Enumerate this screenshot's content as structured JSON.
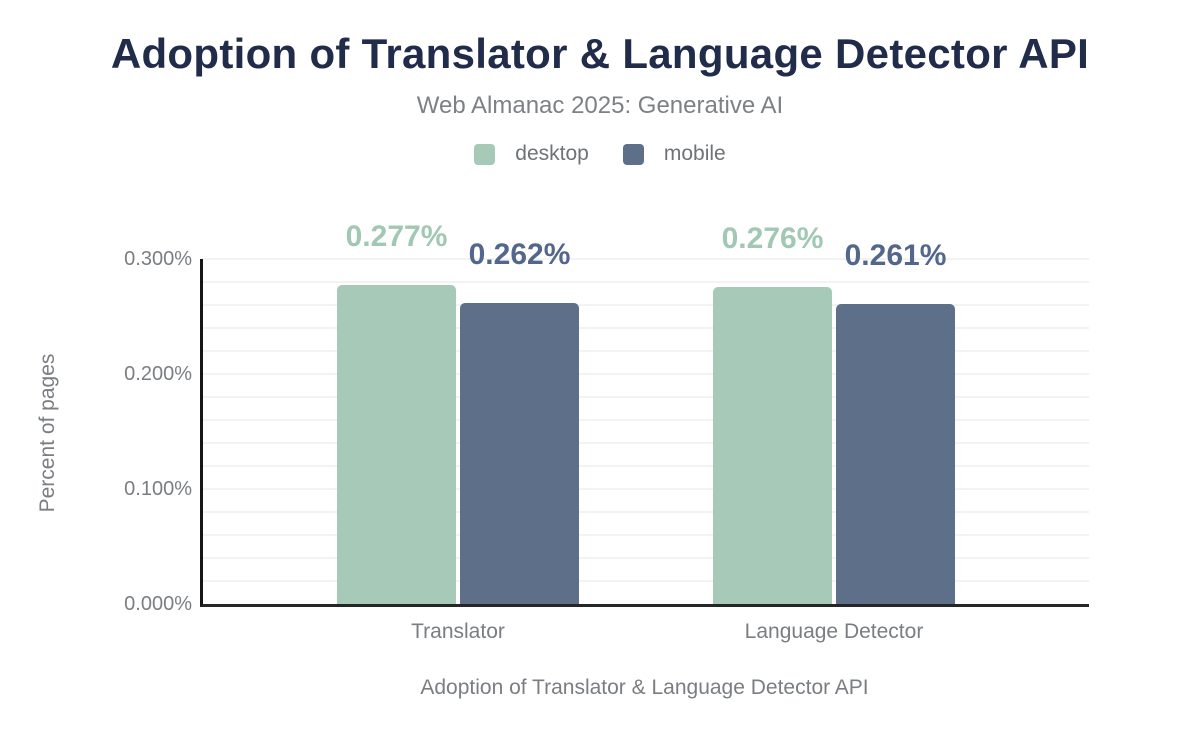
{
  "header": {
    "title": "Adoption of Translator & Language Detector API",
    "subtitle": "Web Almanac 2025: Generative AI"
  },
  "chart_data": {
    "type": "bar",
    "title": "Adoption of Translator & Language Detector API",
    "subtitle": "Web Almanac 2025: Generative AI",
    "categories": [
      "Translator",
      "Language Detector"
    ],
    "series": [
      {
        "name": "desktop",
        "color": "#a6c9b8",
        "label_color": "#a0c8b3",
        "values": [
          0.277,
          0.276
        ],
        "value_labels": [
          "0.277%",
          "0.276%"
        ]
      },
      {
        "name": "mobile",
        "color": "#5e7089",
        "label_color": "#53678c",
        "values": [
          0.262,
          0.261
        ],
        "value_labels": [
          "0.262%",
          "0.261%"
        ]
      }
    ],
    "xlabel": "Adoption of Translator & Language Detector API",
    "ylabel": "Percent of pages",
    "ylim": [
      0,
      0.3
    ],
    "yticks": [
      {
        "value": 0.0,
        "label": "0.000%"
      },
      {
        "value": 0.1,
        "label": "0.100%"
      },
      {
        "value": 0.2,
        "label": "0.200%"
      },
      {
        "value": 0.3,
        "label": "0.300%"
      }
    ],
    "grid": true,
    "grid_step": 0.02,
    "legend_position": "top"
  },
  "colors": {
    "background": "#ffffff",
    "title_text": "#202c49",
    "muted_text": "#7a7e82",
    "legend_text": "#6e7377",
    "gridline": "#f3f3f4",
    "axis_line": "#1f1f1f"
  }
}
